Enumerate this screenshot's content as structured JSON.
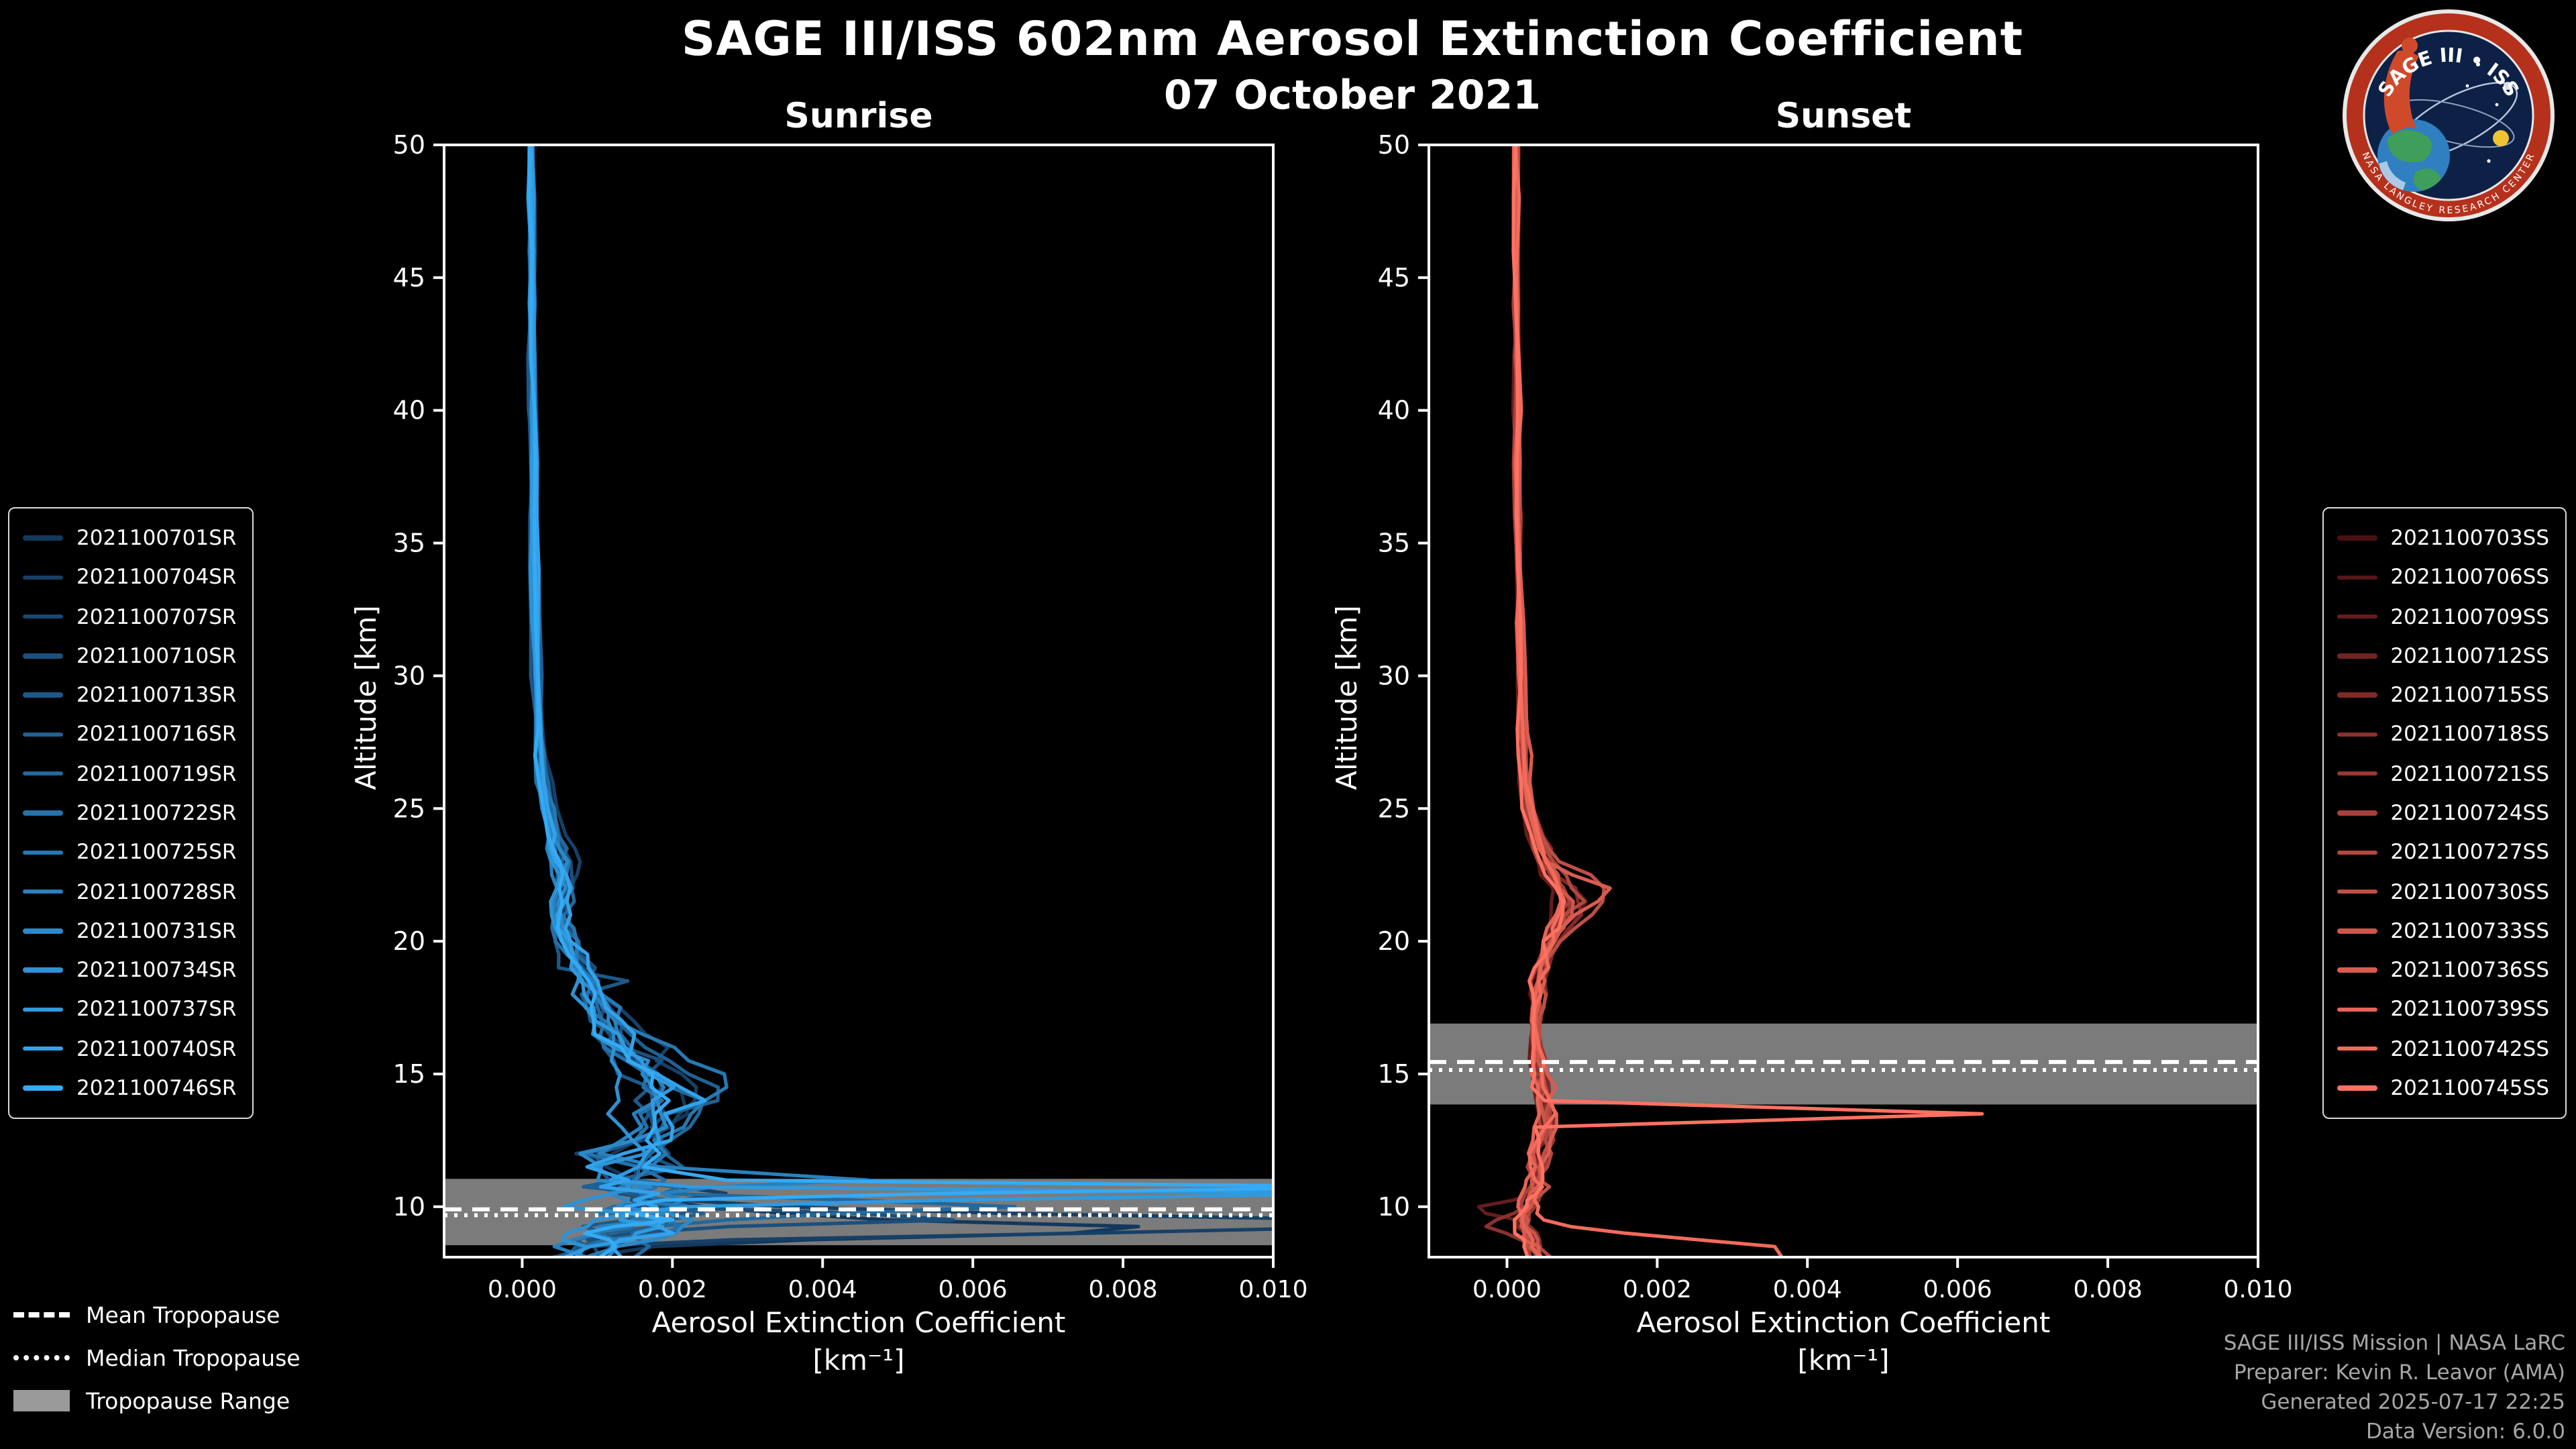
{
  "header": {
    "title": "SAGE III/ISS 602nm Aerosol Extinction Coefficient",
    "date": "07 October 2021"
  },
  "logo": {
    "name": "SAGE III • ISS",
    "ring_text": "NASA LANGLEY RESEARCH CENTER",
    "colors": {
      "ring": "#b5311c",
      "field": "#0d2147",
      "earth_ocean": "#2f7fc1",
      "earth_land": "#3f9e5a",
      "figure": "#cf4a2b",
      "sun": "#f0c330"
    }
  },
  "tropopause_legend": [
    {
      "label": "Mean Tropopause",
      "style": "dashed"
    },
    {
      "label": "Median Tropopause",
      "style": "dotted"
    },
    {
      "label": "Tropopause Range",
      "style": "band"
    }
  ],
  "credits": {
    "line1": "SAGE III/ISS Mission | NASA LaRC",
    "line2": "Preparer: Kevin R. Leavor (AMA)",
    "line3": "Generated 2025-07-17 22:25",
    "line4": "Data Version: 6.0.0"
  },
  "chart_data": {
    "type": "line",
    "title": "SAGE III/ISS 602nm Aerosol Extinction Coefficient",
    "subtitle": "07 October 2021",
    "xlabel_line1": "Aerosol Extinction Coefficient",
    "xlabel_line2": "[km⁻¹]",
    "ylabel": "Altitude [km]",
    "xlim": [
      -0.00104,
      0.01
    ],
    "ylim": [
      8.1,
      50
    ],
    "grid": false,
    "band_color": "#9a9a9a",
    "band_opacity": 0.8,
    "xticks": [
      {
        "v": 0.0,
        "label": "0.000"
      },
      {
        "v": 0.002,
        "label": "0.002"
      },
      {
        "v": 0.004,
        "label": "0.004"
      },
      {
        "v": 0.006,
        "label": "0.006"
      },
      {
        "v": 0.008,
        "label": "0.008"
      },
      {
        "v": 0.01,
        "label": "0.010"
      }
    ],
    "yticks": [
      {
        "v": 10,
        "label": "10"
      },
      {
        "v": 15,
        "label": "15"
      },
      {
        "v": 20,
        "label": "20"
      },
      {
        "v": 25,
        "label": "25"
      },
      {
        "v": 30,
        "label": "30"
      },
      {
        "v": 35,
        "label": "35"
      },
      {
        "v": 40,
        "label": "40"
      },
      {
        "v": 45,
        "label": "45"
      },
      {
        "v": 50,
        "label": "50"
      }
    ],
    "panels": [
      {
        "title": "Sunrise",
        "tropopause": {
          "mean_km": 9.9,
          "median_km": 9.68,
          "range_km": [
            8.55,
            11.05
          ]
        },
        "jitter_rel": 0.12,
        "jitter_low": 0.3,
        "altitude_km": [
          50,
          48,
          46,
          44,
          42,
          40,
          38,
          36,
          34,
          32,
          30,
          28,
          27,
          26,
          25,
          24,
          23.5,
          23,
          22.5,
          22,
          21.5,
          21,
          20.5,
          20,
          19.5,
          19,
          18.5,
          18,
          17.5,
          17,
          16.5,
          16,
          15.5,
          15,
          14.5,
          14,
          13.5,
          13,
          12.5,
          12,
          11.5,
          11,
          10.75,
          10.5,
          10.25,
          10,
          9.75,
          9.5,
          9.25,
          9,
          8.75,
          8.5,
          8.1
        ],
        "mean_extinction": [
          0.00012,
          0.00012,
          0.00013,
          0.00013,
          0.00014,
          0.00014,
          0.00015,
          0.00016,
          0.00017,
          0.00018,
          0.0002,
          0.00023,
          0.00025,
          0.00028,
          0.00033,
          0.0004,
          0.00045,
          0.0005,
          0.00053,
          0.00055,
          0.00051,
          0.00048,
          0.00052,
          0.00058,
          0.00066,
          0.00075,
          0.00085,
          0.00095,
          0.00105,
          0.00115,
          0.00127,
          0.0014,
          0.00155,
          0.0017,
          0.00184,
          0.0019,
          0.00182,
          0.0017,
          0.0016,
          0.0015,
          0.00142,
          0.0014,
          0.00148,
          0.00158,
          0.00168,
          0.00178,
          0.0018,
          0.00172,
          0.00158,
          0.0014,
          0.0012,
          0.00102,
          0.0009
        ],
        "features": [
          {
            "series": 14,
            "alt": 10.7,
            "peak": 0.0105,
            "width": 0.22
          },
          {
            "series": 12,
            "alt": 10.45,
            "peak": 0.0105,
            "width": 0.2
          },
          {
            "series": 1,
            "alt": 9.35,
            "peak": 0.011,
            "width": 0.45
          },
          {
            "series": 0,
            "alt": 9.15,
            "peak": 0.007,
            "width": 0.4
          },
          {
            "series": 6,
            "alt": 10.05,
            "peak": 0.0055,
            "width": 0.28
          },
          {
            "series": 3,
            "alt": 9.6,
            "peak": 0.004,
            "width": 0.3
          },
          {
            "series": 9,
            "alt": 11.0,
            "peak": 0.0028,
            "width": 0.3
          },
          {
            "series": 4,
            "alt": 18.4,
            "peak": 0.0011,
            "width": 0.18
          },
          {
            "series": 8,
            "alt": 15.2,
            "peak": 0.0007,
            "width": 0.8
          },
          {
            "series": 5,
            "alt": 14.6,
            "peak": 0.0006,
            "width": 0.7
          }
        ],
        "series": [
          {
            "name": "2021100701SR",
            "color": "#14385c"
          },
          {
            "name": "2021100704SR",
            "color": "#164067"
          },
          {
            "name": "2021100707SR",
            "color": "#194872"
          },
          {
            "name": "2021100710SR",
            "color": "#1b507d"
          },
          {
            "name": "2021100713SR",
            "color": "#1d5988"
          },
          {
            "name": "2021100716SR",
            "color": "#206193"
          },
          {
            "name": "2021100719SR",
            "color": "#22699e"
          },
          {
            "name": "2021100722SR",
            "color": "#2571a9"
          },
          {
            "name": "2021100725SR",
            "color": "#2779b3"
          },
          {
            "name": "2021100728SR",
            "color": "#2981be"
          },
          {
            "name": "2021100731SR",
            "color": "#2c89c9"
          },
          {
            "name": "2021100734SR",
            "color": "#2e92d4"
          },
          {
            "name": "2021100737SR",
            "color": "#309adf"
          },
          {
            "name": "2021100740SR",
            "color": "#33a2ea"
          },
          {
            "name": "2021100746SR",
            "color": "#35aaf5"
          }
        ]
      },
      {
        "title": "Sunset",
        "tropopause": {
          "mean_km": 15.45,
          "median_km": 15.15,
          "range_km": [
            13.85,
            16.9
          ]
        },
        "jitter_rel": 0.1,
        "jitter_low": 0.2,
        "altitude_km": [
          50,
          48,
          46,
          44,
          42,
          40,
          38,
          36,
          34,
          32,
          30,
          28,
          27,
          26,
          25,
          24,
          23.5,
          23,
          22.5,
          22,
          21.5,
          21,
          20.5,
          20,
          19.5,
          19,
          18.5,
          18,
          17.5,
          17,
          16.5,
          16,
          15.5,
          15,
          14.5,
          14,
          13.5,
          13,
          12.5,
          12,
          11.5,
          11,
          10.75,
          10.5,
          10.25,
          10,
          9.75,
          9.5,
          9.25,
          9,
          8.75,
          8.5,
          8.1
        ],
        "mean_extinction": [
          0.00012,
          0.00012,
          0.00012,
          0.00013,
          0.00013,
          0.00014,
          0.00014,
          0.00015,
          0.00016,
          0.00017,
          0.00018,
          0.00021,
          0.00023,
          0.00026,
          0.00031,
          0.0004,
          0.00046,
          0.00052,
          0.00062,
          0.00076,
          0.00086,
          0.0008,
          0.0007,
          0.0006,
          0.00052,
          0.00046,
          0.00042,
          0.0004,
          0.00038,
          0.00038,
          0.00038,
          0.0004,
          0.00042,
          0.00045,
          0.00049,
          0.00052,
          0.00052,
          0.0005,
          0.00048,
          0.00045,
          0.00042,
          0.0004,
          0.00038,
          0.00036,
          0.00032,
          0.00028,
          0.00024,
          0.00022,
          0.00024,
          0.00028,
          0.00033,
          0.00038,
          0.00044
        ],
        "features": [
          {
            "series": 14,
            "alt": 13.55,
            "peak": 0.0062,
            "width": 0.22
          },
          {
            "series": 13,
            "alt": 8.3,
            "peak": 0.0034,
            "width": 0.7
          },
          {
            "series": 2,
            "alt": 9.9,
            "peak": -0.0007,
            "width": 0.3
          },
          {
            "series": 5,
            "alt": 9.3,
            "peak": -0.0005,
            "width": 0.35
          },
          {
            "series": 11,
            "alt": 21.9,
            "peak": 0.0005,
            "width": 0.6
          },
          {
            "series": 9,
            "alt": 22.15,
            "peak": 0.0004,
            "width": 0.7
          }
        ],
        "series": [
          {
            "name": "2021100703SS",
            "color": "#4a0f12"
          },
          {
            "name": "2021100706SS",
            "color": "#571618"
          },
          {
            "name": "2021100709SS",
            "color": "#641d1d"
          },
          {
            "name": "2021100712SS",
            "color": "#712423"
          },
          {
            "name": "2021100715SS",
            "color": "#7e2b29"
          },
          {
            "name": "2021100718SS",
            "color": "#8b322e"
          },
          {
            "name": "2021100721SS",
            "color": "#983934"
          },
          {
            "name": "2021100724SS",
            "color": "#a5413a"
          },
          {
            "name": "2021100727SS",
            "color": "#b1483f"
          },
          {
            "name": "2021100730SS",
            "color": "#be4f45"
          },
          {
            "name": "2021100733SS",
            "color": "#cb564a"
          },
          {
            "name": "2021100736SS",
            "color": "#d85d50"
          },
          {
            "name": "2021100739SS",
            "color": "#e56456"
          },
          {
            "name": "2021100742SS",
            "color": "#f26b5b"
          },
          {
            "name": "2021100745SS",
            "color": "#ff7261"
          }
        ]
      }
    ]
  }
}
